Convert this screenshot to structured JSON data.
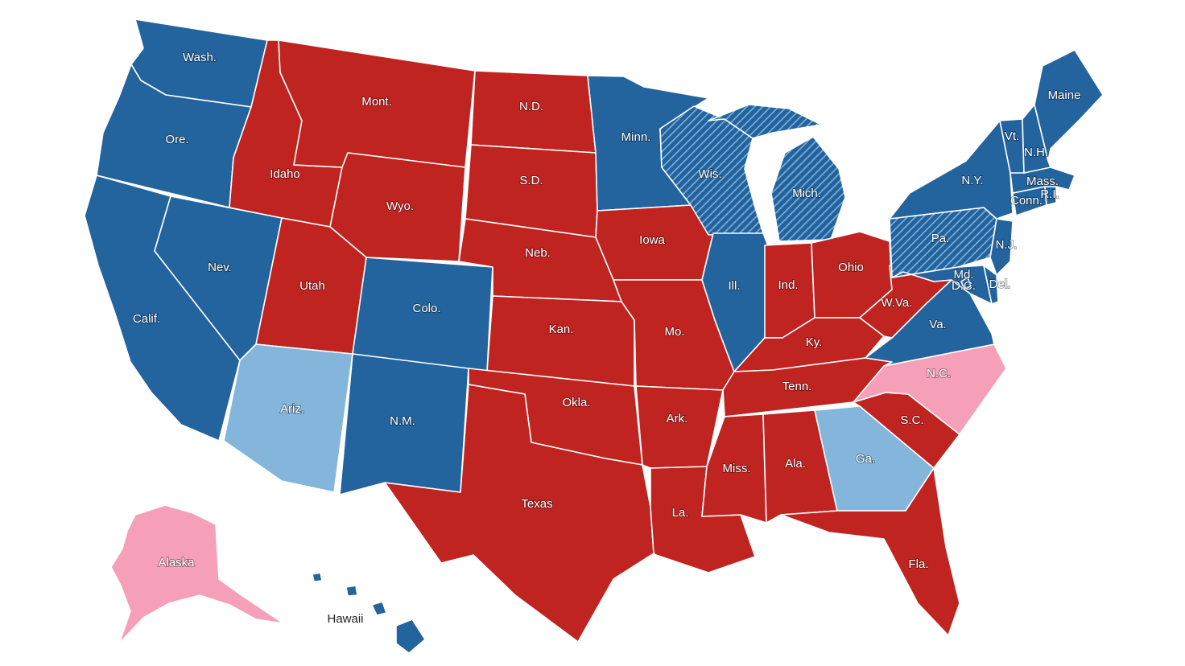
{
  "colors": {
    "dem": "#23649e",
    "dem_lean": "#84b5db",
    "rep": "#bf2421",
    "rep_lean": "#f5a0b8",
    "hatch": "#84b5db",
    "background": "#ffffff"
  },
  "legend_categories": [
    "dem",
    "dem_lean",
    "rep",
    "rep_lean",
    "dem_hatched"
  ],
  "states": {
    "wa": {
      "label": "Wash.",
      "status": "dem"
    },
    "or": {
      "label": "Ore.",
      "status": "dem"
    },
    "ca": {
      "label": "Calif.",
      "status": "dem"
    },
    "nv": {
      "label": "Nev.",
      "status": "dem"
    },
    "id": {
      "label": "Idaho",
      "status": "rep"
    },
    "mt": {
      "label": "Mont.",
      "status": "rep"
    },
    "wy": {
      "label": "Wyo.",
      "status": "rep"
    },
    "ut": {
      "label": "Utah",
      "status": "rep"
    },
    "az": {
      "label": "Ariz.",
      "status": "dem_lean"
    },
    "co": {
      "label": "Colo.",
      "status": "dem"
    },
    "nm": {
      "label": "N.M.",
      "status": "dem"
    },
    "nd": {
      "label": "N.D.",
      "status": "rep"
    },
    "sd": {
      "label": "S.D.",
      "status": "rep"
    },
    "ne": {
      "label": "Neb.",
      "status": "rep"
    },
    "ks": {
      "label": "Kan.",
      "status": "rep"
    },
    "ok": {
      "label": "Okla.",
      "status": "rep"
    },
    "tx": {
      "label": "Texas",
      "status": "rep"
    },
    "mn": {
      "label": "Minn.",
      "status": "dem"
    },
    "ia": {
      "label": "Iowa",
      "status": "rep"
    },
    "mo": {
      "label": "Mo.",
      "status": "rep"
    },
    "ar": {
      "label": "Ark.",
      "status": "rep"
    },
    "la": {
      "label": "La.",
      "status": "rep"
    },
    "wi": {
      "label": "Wis.",
      "status": "dem_hatched"
    },
    "il": {
      "label": "Ill.",
      "status": "dem"
    },
    "mi": {
      "label": "Mich.",
      "status": "dem_hatched"
    },
    "in": {
      "label": "Ind.",
      "status": "rep"
    },
    "oh": {
      "label": "Ohio",
      "status": "rep"
    },
    "ky": {
      "label": "Ky.",
      "status": "rep"
    },
    "tn": {
      "label": "Tenn.",
      "status": "rep"
    },
    "ms": {
      "label": "Miss.",
      "status": "rep"
    },
    "al": {
      "label": "Ala.",
      "status": "rep"
    },
    "ga": {
      "label": "Ga.",
      "status": "dem_lean"
    },
    "fl": {
      "label": "Fla.",
      "status": "rep"
    },
    "sc": {
      "label": "S.C.",
      "status": "rep"
    },
    "nc": {
      "label": "N.C.",
      "status": "rep_lean"
    },
    "va": {
      "label": "Va.",
      "status": "dem"
    },
    "wv": {
      "label": "W.Va.",
      "status": "rep"
    },
    "pa": {
      "label": "Pa.",
      "status": "dem_hatched"
    },
    "ny": {
      "label": "N.Y.",
      "status": "dem"
    },
    "nj": {
      "label": "N.J.",
      "status": "dem"
    },
    "de": {
      "label": "Del.",
      "status": "dem"
    },
    "md": {
      "label": "Md.",
      "status": "dem"
    },
    "dc": {
      "label": "D.C.",
      "status": "dem"
    },
    "ct": {
      "label": "Conn.",
      "status": "dem"
    },
    "ri": {
      "label": "R.I.",
      "status": "dem"
    },
    "ma": {
      "label": "Mass.",
      "status": "dem"
    },
    "vt": {
      "label": "Vt.",
      "status": "dem"
    },
    "nh": {
      "label": "N.H.",
      "status": "dem"
    },
    "me": {
      "label": "Maine",
      "status": "dem"
    },
    "ak": {
      "label": "Alaska",
      "status": "rep_lean"
    },
    "hi": {
      "label": "Hawaii",
      "status": "dem"
    }
  }
}
